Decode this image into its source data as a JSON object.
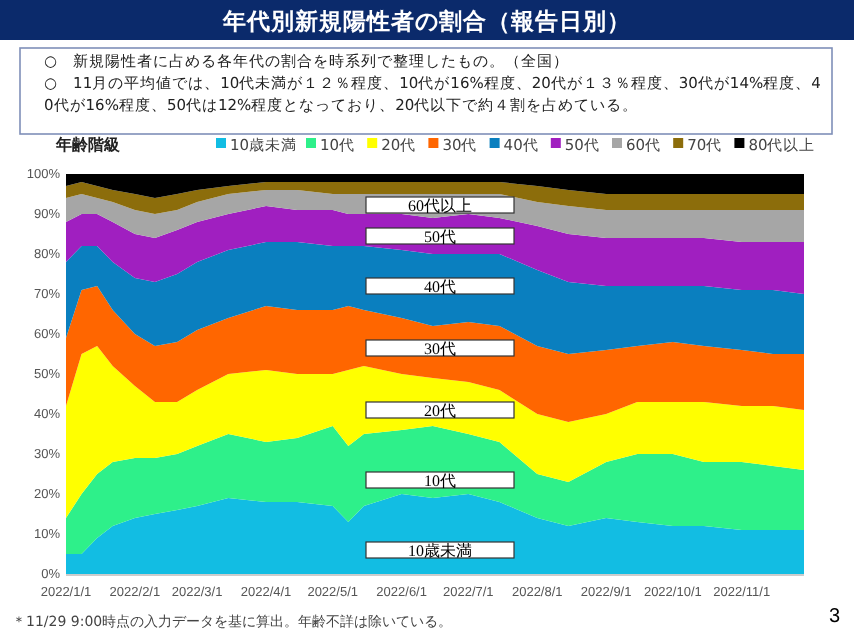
{
  "chart_data": {
    "type": "area",
    "stacked": true,
    "title": "年代別新規陽性者の割合（報告日別）",
    "legend_title": "年齢階級",
    "legend": "top",
    "x": [
      "2022-01-01",
      "2022-01-08",
      "2022-01-15",
      "2022-01-22",
      "2022-02-01",
      "2022-02-10",
      "2022-02-20",
      "2022-03-01",
      "2022-03-15",
      "2022-04-01",
      "2022-04-15",
      "2022-05-01",
      "2022-05-08",
      "2022-05-15",
      "2022-06-01",
      "2022-06-15",
      "2022-07-01",
      "2022-07-15",
      "2022-08-01",
      "2022-08-15",
      "2022-09-01",
      "2022-09-15",
      "2022-10-01",
      "2022-10-15",
      "2022-11-01",
      "2022-11-15",
      "2022-11-29"
    ],
    "xlim": [
      "2022-01-01",
      "2022-11-29"
    ],
    "xticks": [
      {
        "value": "2022-01-01",
        "label": "2022/1/1"
      },
      {
        "value": "2022-02-01",
        "label": "2022/2/1"
      },
      {
        "value": "2022-03-01",
        "label": "2022/3/1"
      },
      {
        "value": "2022-04-01",
        "label": "2022/4/1"
      },
      {
        "value": "2022-05-01",
        "label": "2022/5/1"
      },
      {
        "value": "2022-06-01",
        "label": "2022/6/1"
      },
      {
        "value": "2022-07-01",
        "label": "2022/7/1"
      },
      {
        "value": "2022-08-01",
        "label": "2022/8/1"
      },
      {
        "value": "2022-09-01",
        "label": "2022/9/1"
      },
      {
        "value": "2022-10-01",
        "label": "2022/10/1"
      },
      {
        "value": "2022-11-01",
        "label": "2022/11/1"
      }
    ],
    "ylim": [
      0,
      100
    ],
    "yticks": [
      {
        "value": 0,
        "label": "0%"
      },
      {
        "value": 10,
        "label": "10%"
      },
      {
        "value": 20,
        "label": "20%"
      },
      {
        "value": 30,
        "label": "30%"
      },
      {
        "value": 40,
        "label": "40%"
      },
      {
        "value": 50,
        "label": "50%"
      },
      {
        "value": 60,
        "label": "60%"
      },
      {
        "value": 70,
        "label": "70%"
      },
      {
        "value": 80,
        "label": "80%"
      },
      {
        "value": 90,
        "label": "90%"
      },
      {
        "value": 100,
        "label": "100%"
      }
    ],
    "series": [
      {
        "name": "10歳未満",
        "color": "#12bde3",
        "values": [
          5,
          5,
          9,
          12,
          14,
          15,
          16,
          17,
          19,
          18,
          18,
          17,
          13,
          17,
          20,
          19,
          20,
          18,
          14,
          12,
          14,
          13,
          12,
          12,
          11,
          11,
          11
        ]
      },
      {
        "name": "10代",
        "color": "#2ef08a",
        "values": [
          9,
          15,
          16,
          16,
          15,
          14,
          14,
          15,
          16,
          15,
          16,
          20,
          19,
          18,
          16,
          18,
          15,
          15,
          11,
          11,
          14,
          17,
          18,
          16,
          17,
          16,
          15
        ]
      },
      {
        "name": "20代",
        "color": "#ffff00",
        "values": [
          28,
          35,
          32,
          24,
          18,
          14,
          13,
          14,
          15,
          18,
          16,
          13,
          19,
          17,
          14,
          12,
          13,
          13,
          15,
          15,
          12,
          13,
          13,
          15,
          14,
          15,
          15
        ]
      },
      {
        "name": "30代",
        "color": "#ff6600",
        "values": [
          17,
          16,
          15,
          14,
          13,
          14,
          15,
          15,
          14,
          16,
          16,
          16,
          16,
          14,
          14,
          13,
          15,
          16,
          17,
          17,
          16,
          14,
          15,
          14,
          14,
          13,
          14
        ]
      },
      {
        "name": "40代",
        "color": "#0a7fbf",
        "values": [
          19,
          11,
          10,
          12,
          14,
          16,
          17,
          17,
          17,
          16,
          17,
          16,
          15,
          16,
          17,
          18,
          17,
          18,
          19,
          18,
          16,
          15,
          14,
          15,
          15,
          16,
          15
        ]
      },
      {
        "name": "50代",
        "color": "#a01fc0",
        "values": [
          10,
          8,
          8,
          10,
          11,
          11,
          11,
          10,
          9,
          9,
          8,
          9,
          8,
          8,
          9,
          9,
          10,
          9,
          11,
          12,
          12,
          12,
          12,
          12,
          12,
          12,
          13
        ]
      },
      {
        "name": "60代",
        "color": "#a6a6a6",
        "values": [
          6,
          5,
          4,
          5,
          6,
          6,
          5,
          5,
          5,
          4,
          5,
          4,
          5,
          5,
          5,
          6,
          5,
          6,
          6,
          7,
          7,
          7,
          7,
          7,
          8,
          8,
          8
        ]
      },
      {
        "name": "70代",
        "color": "#8c6d0b",
        "values": [
          3,
          3,
          3,
          3,
          4,
          4,
          4,
          3,
          2,
          2,
          2,
          3,
          3,
          3,
          3,
          3,
          3,
          3,
          4,
          4,
          4,
          4,
          4,
          4,
          4,
          4,
          4
        ]
      },
      {
        "name": "80代以上",
        "color": "#000000",
        "values": [
          3,
          2,
          3,
          4,
          5,
          6,
          5,
          4,
          3,
          2,
          2,
          2,
          2,
          2,
          2,
          2,
          2,
          2,
          3,
          4,
          5,
          5,
          5,
          5,
          5,
          5,
          5
        ]
      }
    ],
    "annotations": [
      "○　新規陽性者に占める各年代の割合を時系列で整理したもの。（全国）",
      "○　11月の平均値では、10代未満が１２％程度、10代が16%程度、20代が１３％程度、30代が14%程度、40代が16%程度、50代は12%程度となっており、20代以下で約４割を占めている。",
      "＊11/29 9:00時点の入力データを基に算出。年齢不詳は除いている。",
      "3",
      "60代以上",
      "50代",
      "40代",
      "30代",
      "20代",
      "10代",
      "10歳未満"
    ]
  }
}
